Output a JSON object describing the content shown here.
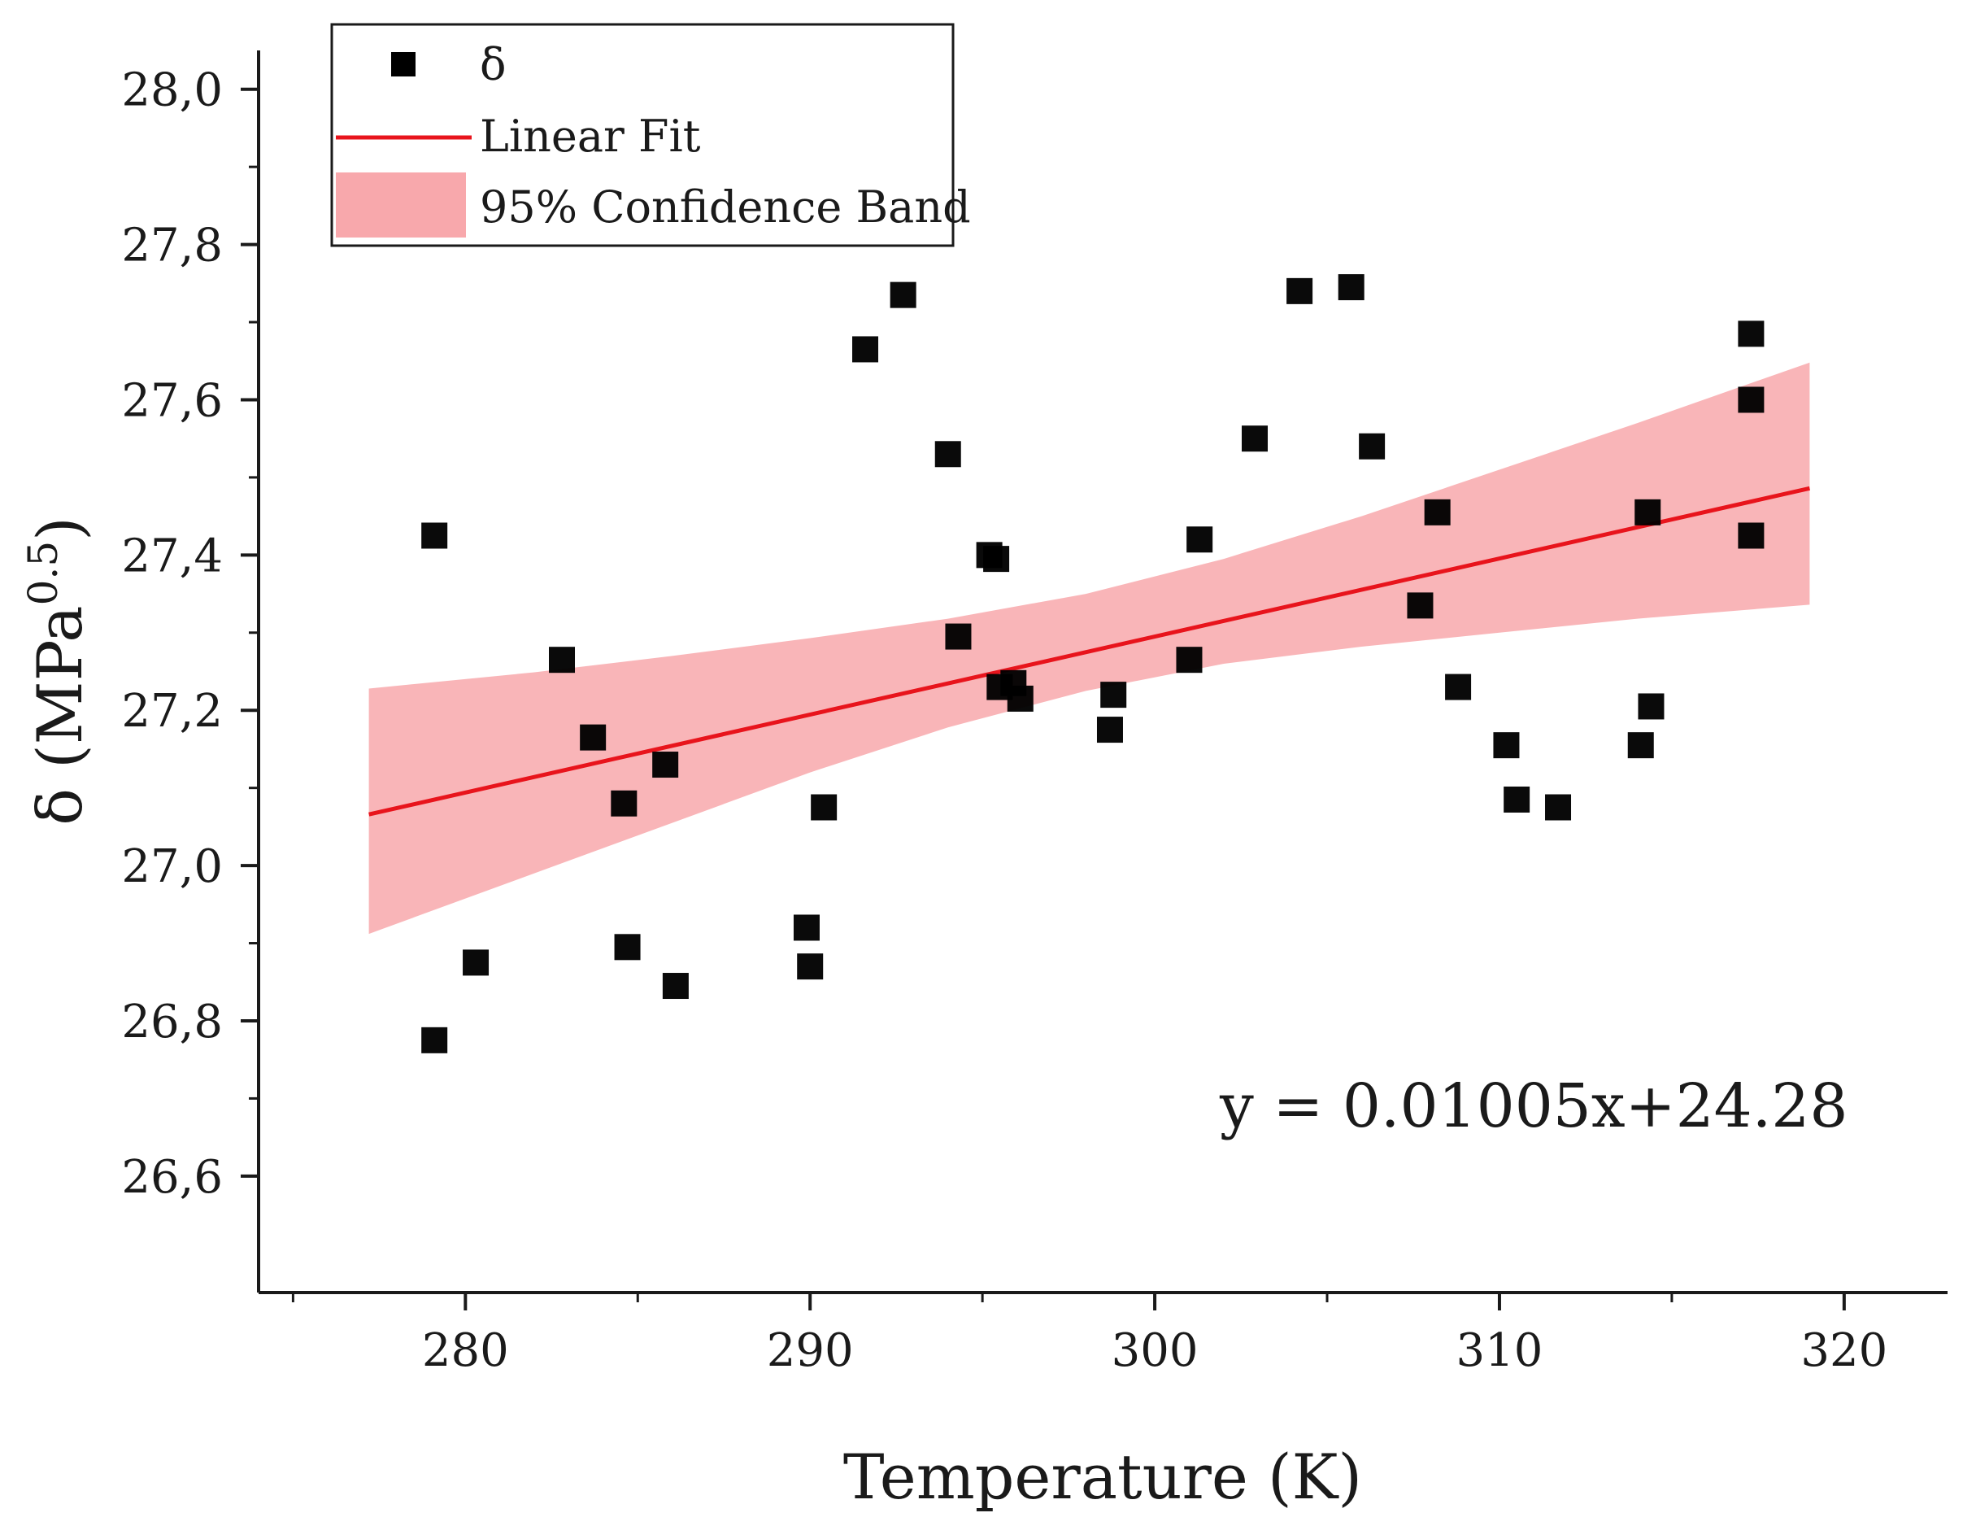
{
  "chart_data": {
    "type": "scatter",
    "title": "",
    "xlabel": "Temperature (K)",
    "ylabel_prefix": "δ (MPa",
    "ylabel_sup": "0.5",
    "ylabel_suffix": ")",
    "xlim": [
      274,
      323
    ],
    "ylim": [
      26.45,
      28.05
    ],
    "x_ticks": [
      280,
      290,
      300,
      310,
      320
    ],
    "x_tick_labels": [
      "280",
      "290",
      "300",
      "310",
      "320"
    ],
    "x_minor_ticks": [
      275,
      285,
      295,
      305,
      315
    ],
    "y_ticks": [
      26.6,
      26.8,
      27.0,
      27.2,
      27.4,
      27.6,
      27.8,
      28.0
    ],
    "y_tick_labels": [
      "26,6",
      "26,8",
      "27,0",
      "27,2",
      "27,4",
      "27,6",
      "27,8",
      "28,0"
    ],
    "y_minor_ticks": [
      26.7,
      26.9,
      27.1,
      27.3,
      27.5,
      27.7,
      27.9
    ],
    "grid": false,
    "legend": {
      "position": "top-left",
      "entries": [
        {
          "label": "δ",
          "kind": "marker"
        },
        {
          "label": "Linear Fit",
          "kind": "line"
        },
        {
          "label": "95% Confidence Band",
          "kind": "band"
        }
      ]
    },
    "series": [
      {
        "name": "δ",
        "kind": "scatter",
        "color": "#000000",
        "x": [
          279.1,
          279.1,
          280.3,
          282.8,
          283.7,
          284.6,
          284.7,
          285.8,
          286.1,
          289.9,
          290.0,
          290.4,
          291.6,
          292.7,
          294.0,
          294.3,
          295.2,
          295.4,
          295.5,
          295.9,
          296.1,
          298.7,
          298.8,
          301.0,
          301.3,
          302.9,
          304.2,
          305.7,
          306.3,
          307.7,
          308.2,
          308.8,
          310.2,
          310.5,
          311.7,
          314.1,
          314.3,
          314.4,
          317.3,
          317.3,
          317.3
        ],
        "y": [
          27.425,
          26.775,
          26.875,
          27.265,
          27.165,
          27.08,
          26.895,
          27.13,
          26.845,
          26.92,
          26.87,
          27.075,
          27.665,
          27.735,
          27.53,
          27.295,
          27.4,
          27.395,
          27.23,
          27.235,
          27.215,
          27.175,
          27.22,
          27.265,
          27.42,
          27.55,
          27.74,
          27.745,
          27.54,
          27.335,
          27.455,
          27.23,
          27.155,
          27.085,
          27.075,
          27.155,
          27.455,
          27.205,
          27.685,
          27.6,
          27.425
        ]
      },
      {
        "name": "Linear Fit",
        "kind": "line",
        "color": "#e8141c",
        "slope": 0.01005,
        "intercept": 24.28,
        "x_range": [
          277.2,
          319.0
        ]
      },
      {
        "name": "95% Confidence Band",
        "kind": "band",
        "color": "#f8a8ac",
        "x": [
          277.2,
          282,
          286,
          290,
          294,
          298,
          302,
          306,
          310,
          314,
          319.0
        ],
        "upper": [
          27.228,
          27.249,
          27.27,
          27.293,
          27.318,
          27.35,
          27.395,
          27.45,
          27.51,
          27.57,
          27.648
        ],
        "lower": [
          26.912,
          26.99,
          27.055,
          27.12,
          27.178,
          27.225,
          27.26,
          27.282,
          27.3,
          27.318,
          27.336
        ]
      }
    ],
    "annotations": [
      {
        "text": "y = 0.01005x+24.28",
        "position": "bottom-right"
      }
    ]
  }
}
